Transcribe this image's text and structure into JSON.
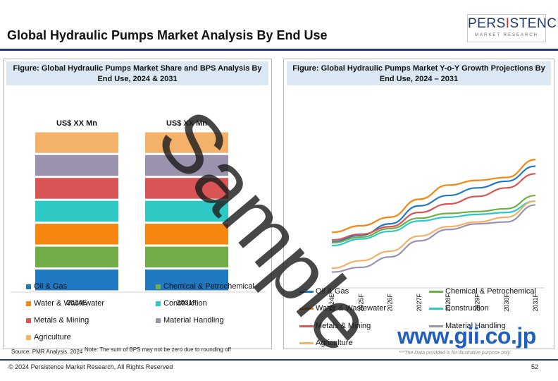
{
  "page": {
    "title": "Global Hydraulic Pumps Market Analysis By End Use",
    "logo_main": "PERSISTENCE",
    "logo_sub": "MARKET RESEARCH",
    "source": "Source: PMR Analysis, 2024",
    "note": "Note: The sum of BPS may not be zero due to rounding off",
    "disclaimer": "***The Data provided is for illustrative purpose only.",
    "copyright": "© 2024 Persistence Market Research, All Rights Reserved",
    "page_number": "52",
    "watermark": "Sample",
    "gii_mark": "www.gii.co.jp"
  },
  "colors": {
    "oil_gas": "#1f78c1",
    "chemical": "#70ad47",
    "water": "#f5860f",
    "construction": "#2ec9c4",
    "metals": "#d95454",
    "material": "#9b92ae",
    "agriculture": "#f4b16a",
    "brand": "#1f3b73"
  },
  "chart_data": [
    {
      "type": "bar",
      "stacked": true,
      "title": "Figure: Global Hydraulic Pumps  Market Share and BPS Analysis By End Use, 2024 & 2031",
      "categories": [
        "2024E",
        "2031F"
      ],
      "bar_headers": [
        "US$ XX Mn",
        "US$ XX Mn"
      ],
      "series": [
        {
          "name": "Oil & Gas",
          "values": [
            14.3,
            14.3
          ]
        },
        {
          "name": "Chemical & Petrochemical",
          "values": [
            14.3,
            14.3
          ]
        },
        {
          "name": "Water & Wastewater",
          "values": [
            14.3,
            14.3
          ]
        },
        {
          "name": "Construction",
          "values": [
            14.3,
            14.3
          ]
        },
        {
          "name": "Metals & Mining",
          "values": [
            14.3,
            14.3
          ]
        },
        {
          "name": "Material Handling",
          "values": [
            14.3,
            14.3
          ]
        },
        {
          "name": "Agriculture",
          "values": [
            14.2,
            14.2
          ]
        }
      ],
      "ylim": [
        0,
        100
      ],
      "legend_position": "bottom"
    },
    {
      "type": "line",
      "title": "Figure: Global Hydraulic Pumps  Market Y-o-Y Growth Projections By End Use, 2024 – 2031",
      "categories": [
        "2024E",
        "2025F",
        "2026F",
        "2027F",
        "2028F",
        "2029F",
        "2030F",
        "2031F"
      ],
      "series": [
        {
          "name": "Oil & Gas",
          "values": [
            4.5,
            5.2,
            6.4,
            8.3,
            9.4,
            10.2,
            10.9,
            12.5
          ]
        },
        {
          "name": "Chemical & Petrochemical",
          "values": [
            4.4,
            5.0,
            5.9,
            7.0,
            7.5,
            7.7,
            8.0,
            9.4
          ]
        },
        {
          "name": "Water & Wastewater",
          "values": [
            5.5,
            6.2,
            7.1,
            9.0,
            10.5,
            11.0,
            11.3,
            13.2
          ]
        },
        {
          "name": "Construction",
          "values": [
            4.1,
            4.8,
            5.6,
            6.7,
            7.1,
            7.4,
            7.6,
            8.8
          ]
        },
        {
          "name": "Metals & Mining",
          "values": [
            4.7,
            5.3,
            6.1,
            7.6,
            8.5,
            9.3,
            10.2,
            11.7
          ]
        },
        {
          "name": "Material Handling",
          "values": [
            1.3,
            1.8,
            2.9,
            4.6,
            5.8,
            6.4,
            6.6,
            8.4
          ]
        },
        {
          "name": "Agriculture",
          "values": [
            1.7,
            2.5,
            3.5,
            5.1,
            6.1,
            6.6,
            7.1,
            8.8
          ]
        }
      ],
      "legend_position": "bottom"
    }
  ]
}
